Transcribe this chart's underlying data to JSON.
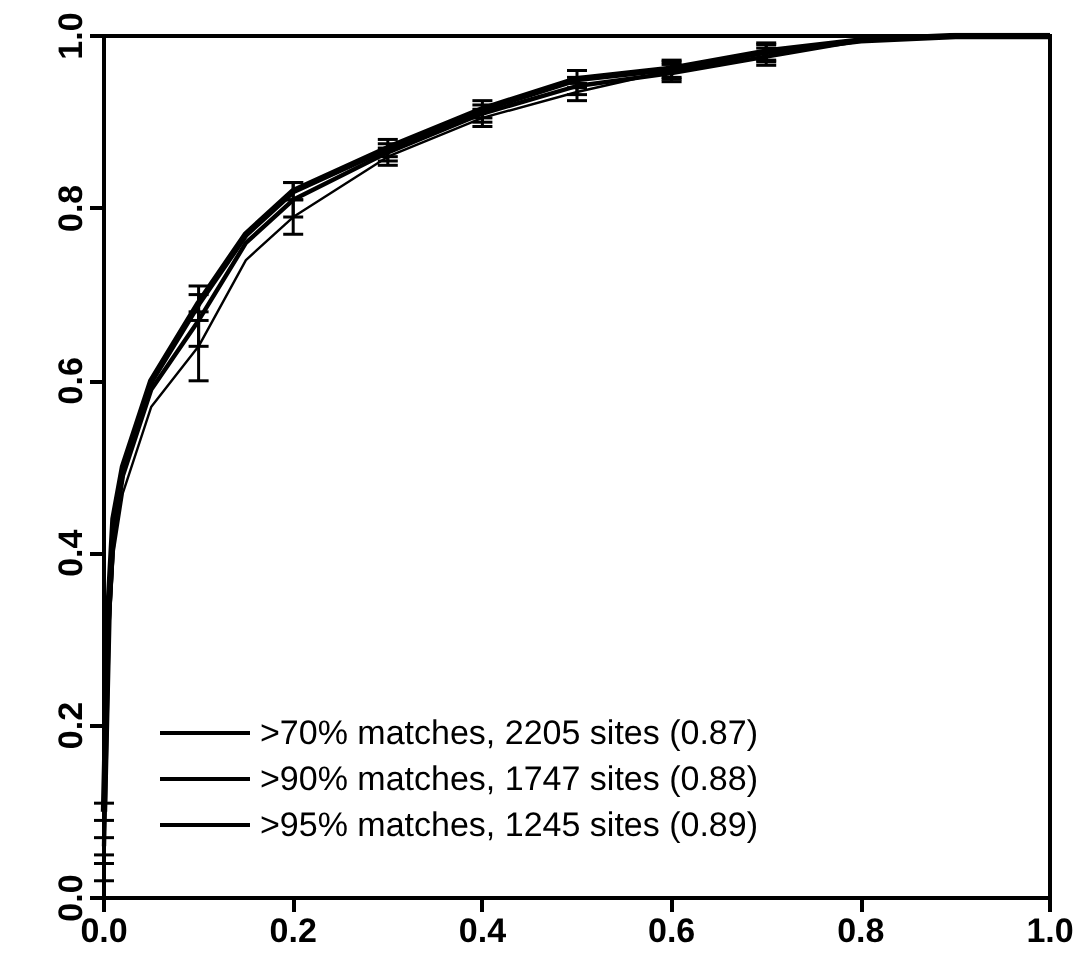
{
  "chart_data": {
    "type": "line",
    "x": [
      0,
      0.005,
      0.01,
      0.02,
      0.05,
      0.1,
      0.15,
      0.2,
      0.3,
      0.4,
      0.5,
      0.6,
      0.7,
      0.8,
      0.9,
      1.0
    ],
    "series": [
      {
        "name": ">70% matches, 2205 sites (0.87)",
        "color": "#000000",
        "values": [
          0.03,
          0.3,
          0.4,
          0.47,
          0.57,
          0.64,
          0.74,
          0.79,
          0.86,
          0.905,
          0.935,
          0.96,
          0.98,
          0.995,
          1,
          1
        ],
        "errors": [
          0.01,
          null,
          null,
          null,
          null,
          0.04,
          null,
          0.02,
          0.01,
          0.01,
          0.01,
          0.01,
          0.01,
          null,
          null,
          null
        ]
      },
      {
        "name": ">90% matches, 1747 sites (0.88)",
        "color": "#000000",
        "values": [
          0.06,
          0.32,
          0.42,
          0.49,
          0.59,
          0.67,
          0.76,
          0.81,
          0.865,
          0.91,
          0.942,
          0.957,
          0.976,
          0.995,
          1,
          1
        ],
        "errors": [
          0.01,
          null,
          null,
          null,
          null,
          0.03,
          null,
          0.02,
          0.01,
          0.01,
          0.01,
          0.01,
          0.01,
          null,
          null,
          null
        ]
      },
      {
        "name": ">95% matches, 1245 sites (0.89)",
        "color": "#000000",
        "values": [
          0.1,
          0.34,
          0.44,
          0.5,
          0.6,
          0.69,
          0.77,
          0.82,
          0.87,
          0.915,
          0.95,
          0.962,
          0.982,
          0.995,
          1,
          1
        ],
        "errors": [
          0.01,
          null,
          null,
          null,
          null,
          0.02,
          null,
          0.01,
          0.01,
          0.01,
          0.01,
          0.01,
          0.01,
          null,
          null,
          null
        ]
      }
    ],
    "xlim": [
      0,
      1
    ],
    "ylim": [
      0,
      1
    ],
    "xticks": [
      {
        "value": 0,
        "label": "0.0"
      },
      {
        "value": 0.2,
        "label": "0.2"
      },
      {
        "value": 0.4,
        "label": "0.4"
      },
      {
        "value": 0.6,
        "label": "0.6"
      },
      {
        "value": 0.8,
        "label": "0.8"
      },
      {
        "value": 1,
        "label": "1.0"
      }
    ],
    "yticks": [
      {
        "value": 0,
        "label": "0.0"
      },
      {
        "value": 0.2,
        "label": "0.2"
      },
      {
        "value": 0.4,
        "label": "0.4"
      },
      {
        "value": 0.6,
        "label": "0.6"
      },
      {
        "value": 0.8,
        "label": "0.8"
      },
      {
        "value": 1,
        "label": "1.0"
      }
    ],
    "legend": "bottom left",
    "grid": false,
    "marker": "none",
    "line_style": "solid"
  }
}
